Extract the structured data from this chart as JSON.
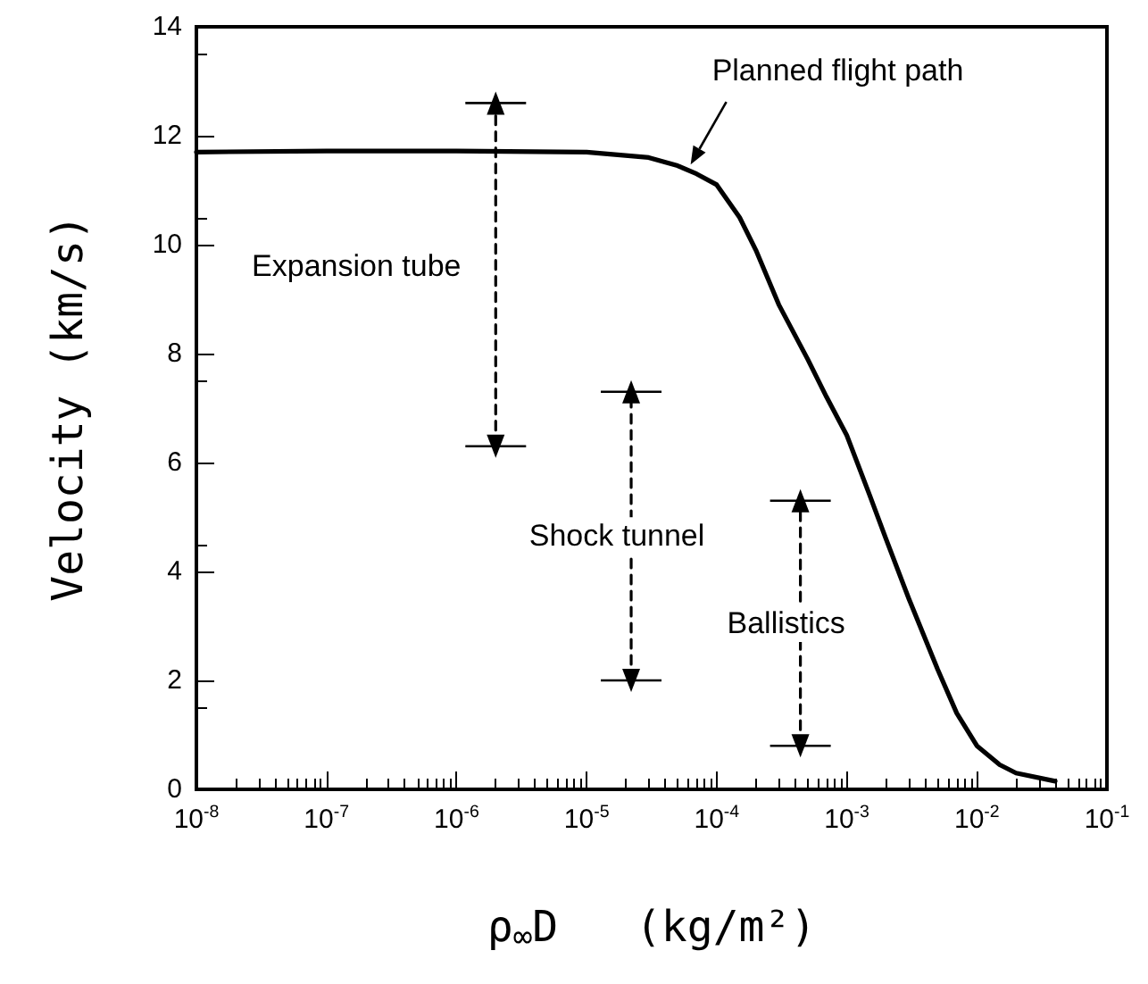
{
  "chart_data": {
    "type": "line",
    "xlabel": "ρ$_{∞}$D   (kg/m²)",
    "ylabel": "Velocity (km/s)",
    "log": "x",
    "xlim": [
      1e-08,
      0.1
    ],
    "xticks": [
      {
        "value": 1e-08,
        "label": "10$^{-8}$"
      },
      {
        "value": 1e-07,
        "label": "10$^{-7}$"
      },
      {
        "value": 1e-06,
        "label": "10$^{-6}$"
      },
      {
        "value": 1e-05,
        "label": "10$^{-5}$"
      },
      {
        "value": 0.0001,
        "label": "10$^{-4}$"
      },
      {
        "value": 0.001,
        "label": "10$^{-3}$"
      },
      {
        "value": 0.01,
        "label": "10$^{-2}$"
      },
      {
        "value": 0.1,
        "label": "10$^{-1}$"
      }
    ],
    "ylim": [
      0,
      14
    ],
    "yticks": [
      0,
      2,
      4,
      6,
      8,
      10,
      12,
      14
    ],
    "grid": false,
    "legend": false,
    "series": [
      {
        "name": "Planned flight path",
        "color": "#000000",
        "marker": "none",
        "line_style": "solid",
        "x": [
          1e-08,
          1e-07,
          1e-06,
          1e-05,
          3e-05,
          5e-05,
          7e-05,
          0.0001,
          0.00015,
          0.0002,
          0.0003,
          0.0005,
          0.0007,
          0.001,
          0.0015,
          0.002,
          0.003,
          0.005,
          0.007,
          0.01,
          0.015,
          0.02,
          0.04
        ],
        "values": [
          11.7,
          11.72,
          11.72,
          11.7,
          11.6,
          11.45,
          11.3,
          11.1,
          10.5,
          9.9,
          8.9,
          7.9,
          7.2,
          6.5,
          5.4,
          4.6,
          3.5,
          2.2,
          1.4,
          0.8,
          0.45,
          0.3,
          0.15
        ]
      },
      {
        "name": "Expansion tube",
        "color": "#000000",
        "marker": "triangle",
        "line_style": "dashed",
        "x": [
          2e-06,
          2e-06
        ],
        "values": [
          6.3,
          12.6
        ]
      },
      {
        "name": "Shock tunnel",
        "color": "#000000",
        "marker": "triangle",
        "line_style": "dashed",
        "x": [
          2.2e-05,
          2.2e-05
        ],
        "values": [
          2.0,
          7.3
        ]
      },
      {
        "name": "Ballistics",
        "color": "#000000",
        "marker": "triangle",
        "line_style": "dashed",
        "x": [
          0.00044,
          0.00044
        ],
        "values": [
          0.8,
          5.3
        ]
      }
    ]
  }
}
